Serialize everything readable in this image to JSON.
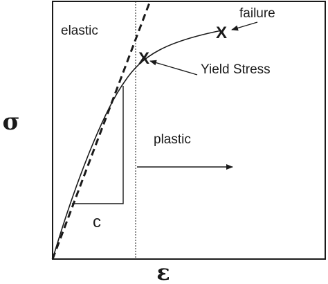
{
  "labels": {
    "elastic": "elastic",
    "failure": "failure",
    "yield": "Yield Stress",
    "plastic": "plastic",
    "slope": "c",
    "sigma": "σ",
    "epsilon": "ε"
  },
  "markers": {
    "yield_symbol": "X",
    "failure_symbol": "X"
  },
  "colors": {
    "ink": "#1a1a1a",
    "background": "#ffffff"
  }
}
